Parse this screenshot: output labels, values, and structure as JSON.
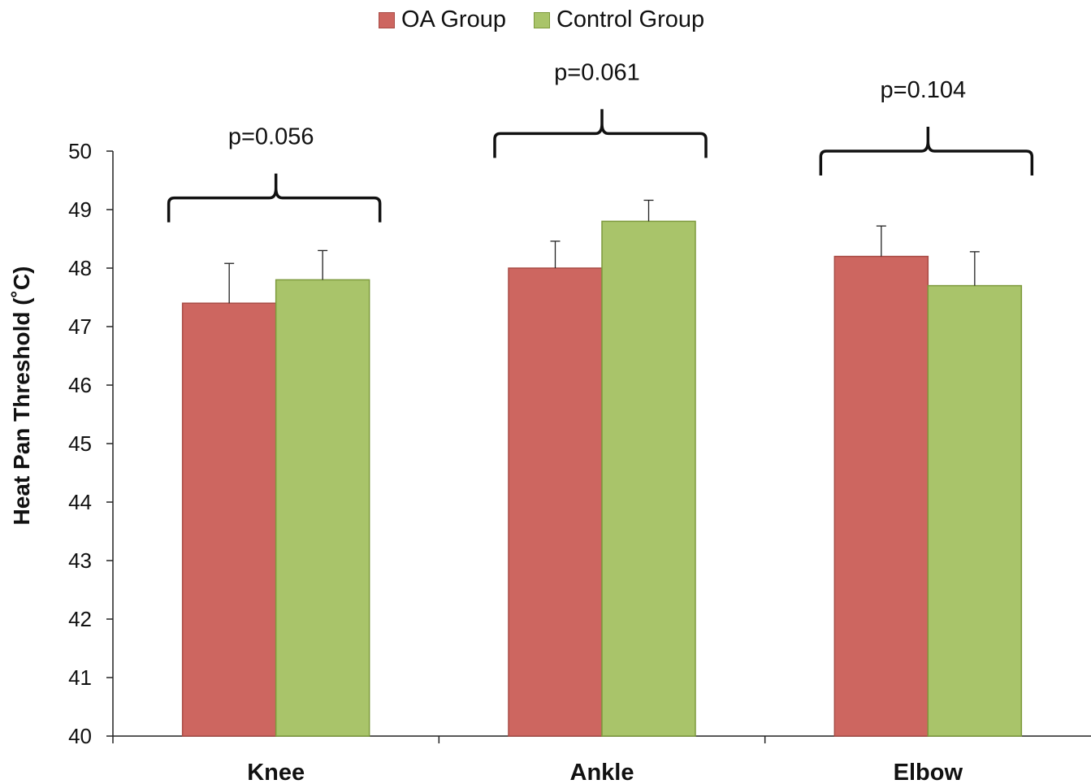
{
  "chart_data": {
    "type": "bar",
    "categories": [
      "Knee",
      "Ankle",
      "Elbow"
    ],
    "series": [
      {
        "name": "OA Group",
        "color": "#cd6660",
        "border": "#a84b45",
        "values": [
          47.4,
          48.0,
          48.2
        ],
        "errors": [
          0.68,
          0.46,
          0.52
        ]
      },
      {
        "name": "Control Group",
        "color": "#a9c46a",
        "border": "#7d9a3c",
        "values": [
          47.8,
          48.8,
          47.7
        ],
        "errors": [
          0.5,
          0.36,
          0.58
        ]
      }
    ],
    "ylabel": "Heat Pan Threshold (˚C)",
    "ylim": [
      40,
      50
    ],
    "yticks": [
      "40",
      "41",
      "42",
      "43",
      "44",
      "45",
      "46",
      "47",
      "48",
      "49",
      "50"
    ],
    "annotations": [
      {
        "category": "Knee",
        "text": "p=0.056",
        "level": 49.2
      },
      {
        "category": "Ankle",
        "text": "p=0.061",
        "level": 50.3
      },
      {
        "category": "Elbow",
        "text": "p=0.104",
        "level": 50.0
      }
    ],
    "legend_position": "top",
    "grid": false
  }
}
